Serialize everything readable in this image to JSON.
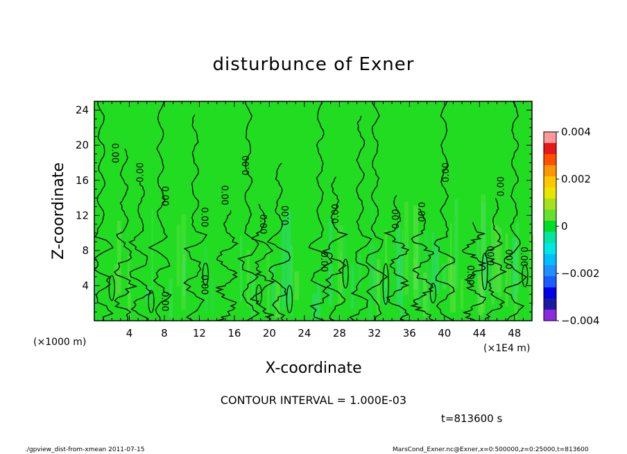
{
  "title": "disturbunce of Exner",
  "contour_interval": "CONTOUR INTERVAL = 1.000E-03",
  "time_label": "t=813600 s",
  "footer_left": "./gpview_dist-from-xmean   2011-07-15",
  "footer_right": "MarsCond_Exner.nc@Exner,x=0:500000,z=0:25000,t=813600",
  "chart_data": {
    "type": "heatmap",
    "title": "disturbunce of Exner",
    "xlabel": "X-coordinate",
    "ylabel": "Z-coordinate",
    "x_unit_left": "(×1000 m)",
    "x_unit_right": "(×1E4 m)",
    "xlim": [
      0,
      50
    ],
    "ylim": [
      0,
      25
    ],
    "x_ticks": [
      4,
      8,
      12,
      16,
      20,
      24,
      28,
      32,
      36,
      40,
      44,
      48
    ],
    "y_ticks": [
      4,
      8,
      12,
      16,
      20,
      24
    ],
    "colorbar": {
      "range": [
        -0.004,
        0.004
      ],
      "labels": [
        "0.004",
        "0.002",
        "0",
        "−0.002",
        "−0.004"
      ],
      "label_values": [
        0.004,
        0.002,
        0,
        -0.002,
        -0.004
      ],
      "levels": [
        -0.004,
        -0.0035,
        -0.003,
        -0.0025,
        -0.002,
        -0.0015,
        -0.001,
        -0.0005,
        0,
        0.0005,
        0.001,
        0.0015,
        0.002,
        0.0025,
        0.003,
        0.0035,
        0.004
      ],
      "colors": [
        "#8a2be2",
        "#1a1aa0",
        "#0000e6",
        "#1a5cff",
        "#1e90ff",
        "#00bfff",
        "#00e5e5",
        "#00e5a0",
        "#00dc28",
        "#66e02e",
        "#a8e01e",
        "#e6e600",
        "#ffc800",
        "#ff9600",
        "#ff5000",
        "#e61919",
        "#ff9999"
      ]
    },
    "background_color": "#22dc22",
    "contour_label": "0.00",
    "contour_lines_x": [
      0.8,
      3.4,
      5.3,
      7.6,
      11.5,
      15.2,
      17.6,
      19.2,
      21.1,
      25.8,
      27.5,
      30.4,
      32.1,
      34.6,
      37.5,
      40.0,
      43.4,
      45.8,
      48.0
    ],
    "contour_labels": [
      {
        "x": 2.3,
        "z": 19.1,
        "text": "0.00",
        "rotation": 90
      },
      {
        "x": 5.3,
        "z": 16.9,
        "text": "0.00",
        "rotation": -90
      },
      {
        "x": 8.0,
        "z": 14.2,
        "text": "0.00",
        "rotation": 90
      },
      {
        "x": 12.5,
        "z": 11.8,
        "text": "0.00",
        "rotation": 90
      },
      {
        "x": 14.8,
        "z": 14.3,
        "text": "0.00",
        "rotation": 90
      },
      {
        "x": 17.4,
        "z": 17.7,
        "text": "0.00",
        "rotation": -90
      },
      {
        "x": 19.2,
        "z": 11.0,
        "text": "0.00",
        "rotation": 90
      },
      {
        "x": 21.9,
        "z": 12.0,
        "text": "0.00",
        "rotation": -90
      },
      {
        "x": 27.6,
        "z": 12.2,
        "text": "0.00",
        "rotation": -90
      },
      {
        "x": 34.5,
        "z": 11.6,
        "text": "0.00",
        "rotation": -90
      },
      {
        "x": 37.3,
        "z": 12.4,
        "text": "0.00",
        "rotation": 90
      },
      {
        "x": 40.2,
        "z": 16.9,
        "text": "0.00",
        "rotation": -90
      },
      {
        "x": 46.5,
        "z": 15.3,
        "text": "0.00",
        "rotation": -90
      },
      {
        "x": 45.4,
        "z": 7.4,
        "text": "0.00",
        "rotation": -90
      },
      {
        "x": 47.5,
        "z": 7.0,
        "text": "0.00",
        "rotation": -90
      },
      {
        "x": 49.0,
        "z": 7.3,
        "text": "0.00",
        "rotation": 90
      },
      {
        "x": 12.5,
        "z": 4.1,
        "text": "0.00",
        "rotation": 90
      },
      {
        "x": 8.0,
        "z": 2.2,
        "text": "0.00",
        "rotation": 90
      },
      {
        "x": 26.2,
        "z": 6.7,
        "text": "0.00",
        "rotation": 90
      },
      {
        "x": 42.9,
        "z": 5.2,
        "text": "0.00",
        "rotation": 90
      }
    ]
  }
}
